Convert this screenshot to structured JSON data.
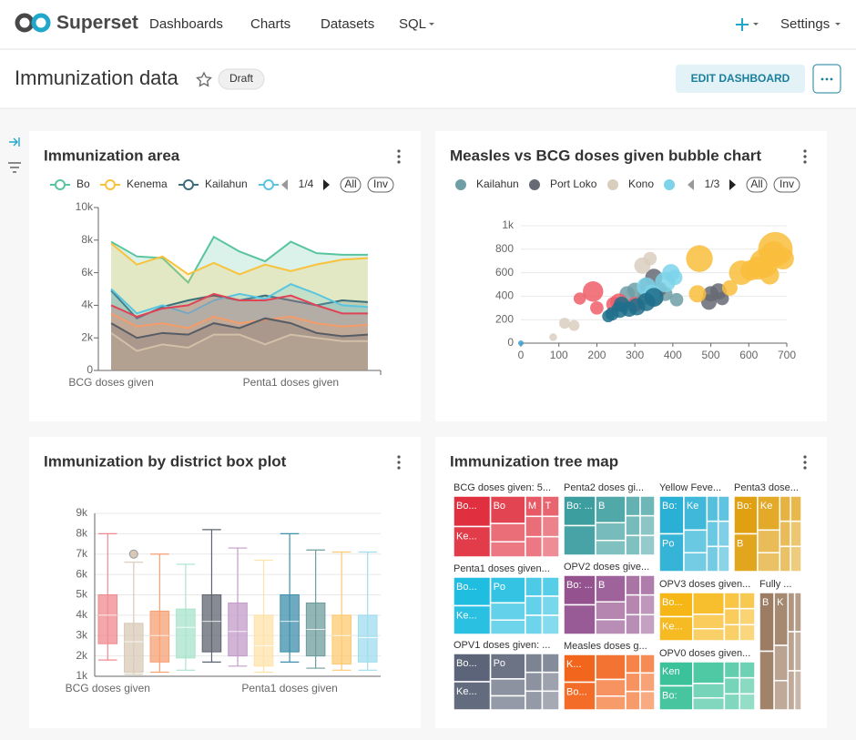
{
  "nav": {
    "brand": "Superset",
    "items": [
      "Dashboards",
      "Charts",
      "Datasets",
      "SQL"
    ],
    "settings": "Settings"
  },
  "header": {
    "title": "Immunization data",
    "status": "Draft",
    "edit_button": "EDIT DASHBOARD"
  },
  "chart_data": [
    {
      "type": "area",
      "title": "Immunization area",
      "legend_page": "1/4",
      "legend_all": "All",
      "legend_invert": "Inv",
      "grid": false,
      "categories": [
        "BCG doses given",
        null,
        null,
        null,
        null,
        null,
        null,
        "Penta1 doses given",
        null,
        null,
        null
      ],
      "ylim": [
        0,
        10000
      ],
      "yticks": [
        0,
        {
          "value": 2000,
          "label": "2k"
        },
        {
          "value": 4000,
          "label": "4k"
        },
        {
          "value": 6000,
          "label": "6k"
        },
        {
          "value": 8000,
          "label": "8k"
        },
        {
          "value": 10000,
          "label": "10k"
        }
      ],
      "series": [
        {
          "name": "Bo",
          "color": "#59c4a0",
          "values": [
            7900,
            7000,
            6900,
            5400,
            8200,
            7300,
            6700,
            7900,
            7200,
            7100,
            7100
          ]
        },
        {
          "name": "Kenema",
          "color": "#f9c23c",
          "values": [
            7800,
            6500,
            7000,
            5900,
            6600,
            5900,
            6500,
            6100,
            6500,
            6800,
            6900
          ]
        },
        {
          "name": "Kailahun",
          "color": "#3b6e79",
          "values": [
            4900,
            3200,
            3900,
            4300,
            4600,
            4300,
            4600,
            4300,
            4000,
            4300,
            4200
          ]
        },
        {
          "color": "#5ac5e0",
          "values": [
            5000,
            3500,
            4000,
            3500,
            4300,
            4700,
            4400,
            5300,
            4700,
            4000,
            3900
          ]
        },
        {
          "color": "#e04355",
          "values": [
            4000,
            3300,
            3800,
            4000,
            4700,
            4300,
            4300,
            4600,
            4000,
            3500,
            3500
          ]
        },
        {
          "color": "#f59c6b",
          "values": [
            3500,
            2700,
            2900,
            2600,
            3300,
            2900,
            3100,
            3300,
            2900,
            2700,
            2800
          ]
        },
        {
          "color": "#555c66",
          "values": [
            2900,
            2000,
            2300,
            2200,
            2900,
            2600,
            3200,
            2900,
            2300,
            2100,
            2200
          ]
        },
        {
          "color": "#d2c0a8",
          "values": [
            2300,
            1200,
            1600,
            1400,
            2200,
            2200,
            1600,
            2200,
            2000,
            1800,
            1800
          ]
        }
      ]
    },
    {
      "type": "bubble",
      "title": "Measles vs BCG doses given bubble chart",
      "legend_page": "1/3",
      "legend_all": "All",
      "legend_invert": "Inv",
      "grid": true,
      "xlim": [
        0,
        700
      ],
      "xticks": [
        0,
        100,
        200,
        300,
        400,
        500,
        600,
        700
      ],
      "ylim": [
        0,
        1000
      ],
      "yticks": [
        0,
        200,
        400,
        600,
        800,
        {
          "value": 1000,
          "label": "1k"
        }
      ],
      "series": [
        {
          "name": "Kailahun",
          "color": "#6e9ea6",
          "x": [
            300,
            330,
            380,
            410,
            280,
            355
          ],
          "y": [
            450,
            400,
            420,
            370,
            420,
            390
          ],
          "size": [
            8,
            10,
            7,
            6,
            8,
            9
          ]
        },
        {
          "name": "Port Loko",
          "color": "#666a73",
          "x": [
            350,
            330,
            500,
            520,
            495,
            530,
            365
          ],
          "y": [
            560,
            500,
            420,
            440,
            350,
            380,
            460
          ],
          "size": [
            10,
            6,
            8,
            9,
            8,
            6,
            7
          ]
        },
        {
          "name": "Kono",
          "color": "#d9cebe",
          "x": [
            85,
            115,
            140,
            320,
            340
          ],
          "y": [
            50,
            170,
            150,
            660,
            720
          ],
          "size": [
            2,
            4,
            4,
            9,
            6
          ]
        },
        {
          "color": "#7dd3ea",
          "x": [
            380,
            395,
            330,
            405,
            345
          ],
          "y": [
            520,
            600,
            480,
            560,
            430
          ],
          "size": [
            14,
            10,
            12,
            8,
            9
          ]
        },
        {
          "color": "#ef5e68",
          "x": [
            190,
            200,
            245,
            258,
            155,
            300
          ],
          "y": [
            440,
            300,
            330,
            350,
            380,
            330
          ],
          "size": [
            14,
            6,
            8,
            10,
            5,
            8
          ]
        },
        {
          "color": "#f9bd3c",
          "x": [
            470,
            465,
            580,
            605,
            625,
            640,
            655,
            665,
            690,
            670,
            550,
            640
          ],
          "y": [
            720,
            420,
            600,
            620,
            640,
            680,
            580,
            760,
            720,
            800,
            470,
            650
          ],
          "size": [
            24,
            10,
            20,
            14,
            18,
            28,
            12,
            22,
            16,
            40,
            8,
            10
          ]
        },
        {
          "color": "#1f6f8b",
          "x": [
            240,
            260,
            285,
            305,
            330,
            350,
            265,
            230
          ],
          "y": [
            250,
            285,
            290,
            310,
            350,
            390,
            330,
            230
          ],
          "size": [
            6,
            9,
            8,
            10,
            11,
            12,
            8,
            5
          ]
        },
        {
          "color": "#3ba0d4",
          "x": [
            0
          ],
          "y": [
            0
          ],
          "size": [
            1
          ]
        }
      ]
    },
    {
      "type": "box",
      "title": "Immunization by district box plot",
      "grid": true,
      "categories": [
        "BCG doses given",
        null,
        null,
        null,
        null,
        null,
        null,
        "Penta1 doses given",
        null,
        null,
        null
      ],
      "ylim": [
        1000,
        9000
      ],
      "yticks": [
        {
          "value": 1000,
          "label": "1k"
        },
        {
          "value": 2000,
          "label": "2k"
        },
        {
          "value": 3000,
          "label": "3k"
        },
        {
          "value": 4000,
          "label": "4k"
        },
        {
          "value": 5000,
          "label": "5k"
        },
        {
          "value": 6000,
          "label": "6k"
        },
        {
          "value": 7000,
          "label": "7k"
        },
        {
          "value": 8000,
          "label": "8k"
        },
        {
          "value": 9000,
          "label": "9k"
        }
      ],
      "boxes": [
        {
          "color": "#f08a8f",
          "min": 1800,
          "q1": 2600,
          "median": 4000,
          "q3": 5000,
          "max": 8000,
          "outliers": []
        },
        {
          "color": "#d8c9b6",
          "min": 1100,
          "q1": 1200,
          "median": 2700,
          "q3": 3600,
          "max": 6600,
          "outliers": [
            7000
          ]
        },
        {
          "color": "#f7a072",
          "min": 1200,
          "q1": 1700,
          "median": 3000,
          "q3": 4200,
          "max": 7000,
          "outliers": []
        },
        {
          "color": "#a8e4cc",
          "min": 1300,
          "q1": 1900,
          "median": 3400,
          "q3": 4300,
          "max": 6500,
          "outliers": []
        },
        {
          "color": "#5d6470",
          "min": 1700,
          "q1": 2200,
          "median": 3700,
          "q3": 5000,
          "max": 8200,
          "outliers": []
        },
        {
          "color": "#c39bc9",
          "min": 1500,
          "q1": 2000,
          "median": 3200,
          "q3": 4600,
          "max": 7300,
          "outliers": []
        },
        {
          "color": "#ffe2a8",
          "min": 1200,
          "q1": 1500,
          "median": 2500,
          "q3": 4000,
          "max": 6700,
          "outliers": []
        },
        {
          "color": "#3d8fab",
          "min": 1700,
          "q1": 2200,
          "median": 3700,
          "q3": 5000,
          "max": 8000,
          "outliers": []
        },
        {
          "color": "#6d9c9c",
          "min": 1400,
          "q1": 2000,
          "median": 3300,
          "q3": 4600,
          "max": 7200,
          "outliers": []
        },
        {
          "color": "#fcc96f",
          "min": 1300,
          "q1": 1600,
          "median": 3000,
          "q3": 4000,
          "max": 7100,
          "outliers": []
        },
        {
          "color": "#9fdcef",
          "min": 1300,
          "q1": 1700,
          "median": 2900,
          "q3": 4000,
          "max": 7100,
          "outliers": []
        }
      ]
    },
    {
      "type": "treemap",
      "title": "Immunization tree map",
      "groups": [
        {
          "label": "BCG doses given: 5...",
          "color": "#e0303f",
          "tiles": [
            "Bo...",
            "Bo",
            "M",
            "T",
            "Ke..."
          ]
        },
        {
          "label": "Penta2 doses gi...",
          "color": "#3d9ea0",
          "tiles": [
            "Bo: ...",
            "B"
          ]
        },
        {
          "label": "Yellow Feve...",
          "color": "#2ab0d5",
          "tiles": [
            "Bo:",
            "Ke",
            "Po"
          ]
        },
        {
          "label": "Penta3 dose...",
          "color": "#e0a012",
          "tiles": [
            "Bo:",
            "Ke",
            "B"
          ]
        },
        {
          "label": "Penta1 doses given...",
          "color": "#1fbde0",
          "tiles": [
            "Bo...",
            "Po",
            "Ke..."
          ]
        },
        {
          "label": "OPV2 doses give...",
          "color": "#94528f",
          "tiles": [
            "Bo: ...",
            "B"
          ]
        },
        {
          "label": "OPV3 doses given...",
          "color": "#f6b716",
          "tiles": [
            "Bo...",
            "Ke..."
          ]
        },
        {
          "label": "Fully ...",
          "color": "#9c7c62",
          "tiles": [
            "B",
            "K"
          ]
        },
        {
          "label": "OPV1 doses given: ...",
          "color": "#5b6478",
          "tiles": [
            "Bo...",
            "Po",
            "Ke..."
          ]
        },
        {
          "label": "Measles doses g...",
          "color": "#f2651c",
          "tiles": [
            "K...",
            "Bo..."
          ]
        },
        {
          "label": "OPV0 doses given...",
          "color": "#3cc29a",
          "tiles": [
            "Ken",
            "Bo:"
          ]
        }
      ]
    }
  ]
}
